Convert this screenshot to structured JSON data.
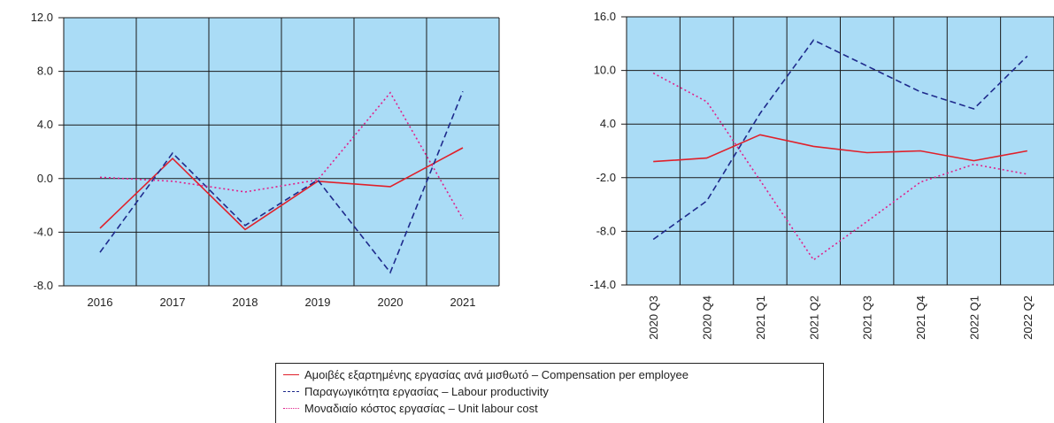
{
  "colors": {
    "plot_bg": "#aadcf6",
    "grid": "#1a1a1a",
    "compensation": "#e0202a",
    "productivity": "#1e2a8c",
    "unit_labour_cost": "#e0208a"
  },
  "legend": {
    "items": [
      {
        "key": "compensation",
        "label": "Αμοιβές εξαρτημένης εργασίας ανά μισθωτό – Compensation per employee",
        "style": "solid"
      },
      {
        "key": "productivity",
        "label": "Παραγωγικότητα εργασίας – Labour productivity",
        "style": "dashed"
      },
      {
        "key": "unit_labour_cost",
        "label": "Μοναδιαίο κόστος εργασίας – Unit labour cost",
        "style": "dotted"
      }
    ]
  },
  "chart_data": [
    {
      "type": "line",
      "categories": [
        "2016",
        "2017",
        "2018",
        "2019",
        "2020",
        "2021"
      ],
      "ylim": [
        -8.0,
        12.0
      ],
      "yticks": [
        "-8.0",
        "-4.0",
        "0.0",
        "4.0",
        "8.0",
        "12.0"
      ],
      "grid": true,
      "series": [
        {
          "key": "compensation",
          "values": [
            -3.7,
            1.5,
            -3.8,
            -0.2,
            -0.6,
            2.3
          ]
        },
        {
          "key": "productivity",
          "values": [
            -5.5,
            1.9,
            -3.5,
            -0.1,
            -7.0,
            6.5
          ]
        },
        {
          "key": "unit_labour_cost",
          "values": [
            0.1,
            -0.2,
            -1.0,
            -0.1,
            6.4,
            -3.0
          ]
        }
      ]
    },
    {
      "type": "line",
      "categories": [
        "2020 Q3",
        "2020 Q4",
        "2021 Q1",
        "2021 Q2",
        "2021 Q3",
        "2021 Q4",
        "2022 Q1",
        "2022 Q2"
      ],
      "ylim": [
        -14.0,
        16.0
      ],
      "yticks": [
        "-14.0",
        "-8.0",
        "-2.0",
        "4.0",
        "10.0",
        "16.0"
      ],
      "grid": true,
      "series": [
        {
          "key": "compensation",
          "values": [
            -0.2,
            0.2,
            2.8,
            1.5,
            0.8,
            1.0,
            -0.1,
            1.0
          ]
        },
        {
          "key": "productivity",
          "values": [
            -8.9,
            -4.6,
            5.2,
            13.4,
            10.5,
            7.6,
            5.7,
            11.6
          ]
        },
        {
          "key": "unit_labour_cost",
          "values": [
            9.7,
            6.5,
            -2.3,
            -11.2,
            -6.9,
            -2.5,
            -0.5,
            -1.6
          ]
        }
      ]
    }
  ]
}
